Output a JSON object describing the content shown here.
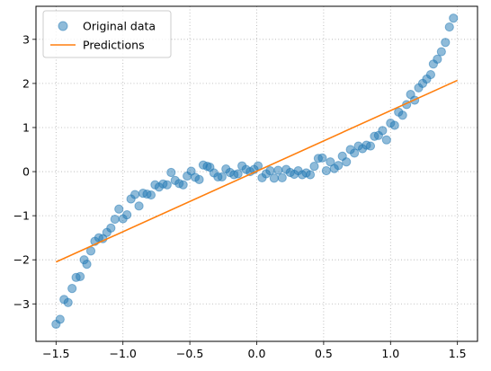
{
  "chart_data": {
    "type": "scatter",
    "title": "",
    "xlabel": "",
    "ylabel": "",
    "xlim": [
      -1.65,
      1.65
    ],
    "ylim": [
      -3.85,
      3.75
    ],
    "xticks": [
      -1.5,
      -1.0,
      -0.5,
      0.0,
      0.5,
      1.0,
      1.5
    ],
    "xtick_labels": [
      "−1.5",
      "−1.0",
      "−0.5",
      "0.0",
      "0.5",
      "1.0",
      "1.5"
    ],
    "yticks": [
      -3,
      -2,
      -1,
      0,
      1,
      2,
      3
    ],
    "ytick_labels": [
      "−3",
      "−2",
      "−1",
      "0",
      "1",
      "2",
      "3"
    ],
    "grid": true,
    "legend": "top-left",
    "series": [
      {
        "name": "Original data",
        "kind": "scatter",
        "color": "#1f77b4",
        "points": [
          [
            -1.5,
            -3.46
          ],
          [
            -1.47,
            -3.35
          ],
          [
            -1.44,
            -2.9
          ],
          [
            -1.41,
            -2.97
          ],
          [
            -1.38,
            -2.65
          ],
          [
            -1.35,
            -2.4
          ],
          [
            -1.32,
            -2.38
          ],
          [
            -1.29,
            -2.0
          ],
          [
            -1.27,
            -2.1
          ],
          [
            -1.24,
            -1.8
          ],
          [
            -1.21,
            -1.58
          ],
          [
            -1.18,
            -1.5
          ],
          [
            -1.15,
            -1.52
          ],
          [
            -1.12,
            -1.38
          ],
          [
            -1.09,
            -1.28
          ],
          [
            -1.06,
            -1.08
          ],
          [
            -1.03,
            -0.85
          ],
          [
            -1.0,
            -1.07
          ],
          [
            -0.97,
            -0.98
          ],
          [
            -0.94,
            -0.62
          ],
          [
            -0.91,
            -0.52
          ],
          [
            -0.88,
            -0.78
          ],
          [
            -0.85,
            -0.49
          ],
          [
            -0.82,
            -0.51
          ],
          [
            -0.79,
            -0.53
          ],
          [
            -0.76,
            -0.3
          ],
          [
            -0.73,
            -0.35
          ],
          [
            -0.7,
            -0.28
          ],
          [
            -0.67,
            -0.3
          ],
          [
            -0.64,
            -0.02
          ],
          [
            -0.61,
            -0.2
          ],
          [
            -0.58,
            -0.27
          ],
          [
            -0.55,
            -0.3
          ],
          [
            -0.52,
            -0.1
          ],
          [
            -0.49,
            0.01
          ],
          [
            -0.46,
            -0.13
          ],
          [
            -0.43,
            -0.18
          ],
          [
            -0.4,
            0.15
          ],
          [
            -0.37,
            0.12
          ],
          [
            -0.35,
            0.1
          ],
          [
            -0.32,
            -0.03
          ],
          [
            -0.29,
            -0.12
          ],
          [
            -0.26,
            -0.12
          ],
          [
            -0.23,
            0.06
          ],
          [
            -0.2,
            -0.02
          ],
          [
            -0.17,
            -0.07
          ],
          [
            -0.14,
            -0.05
          ],
          [
            -0.11,
            0.13
          ],
          [
            -0.08,
            0.05
          ],
          [
            -0.05,
            0.0
          ],
          [
            -0.02,
            0.05
          ],
          [
            0.01,
            0.13
          ],
          [
            0.04,
            -0.14
          ],
          [
            0.07,
            -0.05
          ],
          [
            0.1,
            0.02
          ],
          [
            0.13,
            -0.15
          ],
          [
            0.16,
            0.03
          ],
          [
            0.19,
            -0.14
          ],
          [
            0.22,
            0.05
          ],
          [
            0.25,
            -0.02
          ],
          [
            0.28,
            -0.06
          ],
          [
            0.31,
            0.02
          ],
          [
            0.34,
            -0.07
          ],
          [
            0.37,
            -0.03
          ],
          [
            0.4,
            -0.07
          ],
          [
            0.43,
            0.12
          ],
          [
            0.46,
            0.3
          ],
          [
            0.49,
            0.31
          ],
          [
            0.52,
            0.02
          ],
          [
            0.55,
            0.22
          ],
          [
            0.58,
            0.07
          ],
          [
            0.61,
            0.14
          ],
          [
            0.64,
            0.35
          ],
          [
            0.67,
            0.22
          ],
          [
            0.7,
            0.5
          ],
          [
            0.73,
            0.42
          ],
          [
            0.76,
            0.58
          ],
          [
            0.79,
            0.52
          ],
          [
            0.82,
            0.6
          ],
          [
            0.85,
            0.58
          ],
          [
            0.88,
            0.8
          ],
          [
            0.91,
            0.82
          ],
          [
            0.94,
            0.93
          ],
          [
            0.97,
            0.72
          ],
          [
            1.0,
            1.1
          ],
          [
            1.03,
            1.05
          ],
          [
            1.06,
            1.35
          ],
          [
            1.09,
            1.28
          ],
          [
            1.12,
            1.52
          ],
          [
            1.15,
            1.75
          ],
          [
            1.18,
            1.62
          ],
          [
            1.21,
            1.9
          ],
          [
            1.24,
            2.0
          ],
          [
            1.27,
            2.1
          ],
          [
            1.3,
            2.2
          ],
          [
            1.32,
            2.44
          ],
          [
            1.35,
            2.55
          ],
          [
            1.38,
            2.72
          ],
          [
            1.41,
            2.93
          ],
          [
            1.44,
            3.28
          ],
          [
            1.47,
            3.48
          ]
        ]
      },
      {
        "name": "Predictions",
        "kind": "line",
        "color": "#ff7f0e",
        "points": [
          [
            -1.5,
            -2.05
          ],
          [
            1.5,
            2.07
          ]
        ]
      }
    ]
  }
}
